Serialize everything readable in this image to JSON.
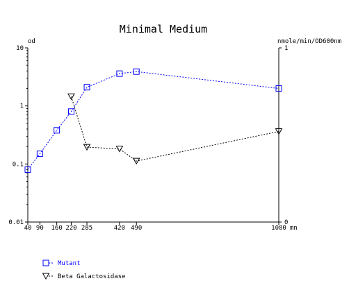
{
  "chart_data": {
    "type": "line",
    "title": "Minimal Medium",
    "y_left": {
      "label": "od",
      "scale": "log",
      "range": [
        0.01,
        10
      ],
      "ticks": [
        {
          "v": 10,
          "label": "10"
        },
        {
          "v": 1,
          "label": "1"
        },
        {
          "v": 0.1,
          "label": "0.1"
        },
        {
          "v": 0.01,
          "label": "0.01"
        }
      ]
    },
    "y_right": {
      "label": "nmole/min/OD600nm",
      "scale": "linear",
      "range": [
        0,
        1
      ],
      "ticks": [
        {
          "v": 1,
          "label": "1"
        },
        {
          "v": 0,
          "label": "0"
        }
      ]
    },
    "x_axis": {
      "range": [
        40,
        1080
      ],
      "ticks": [
        40,
        90,
        160,
        220,
        285,
        420,
        490,
        1080
      ],
      "tick_labels": [
        "40",
        "90",
        "160",
        "220",
        "285",
        "420",
        "490",
        "1080"
      ],
      "unit": "mn"
    },
    "series": [
      {
        "name": "Mutant",
        "axis": "left",
        "color": "#0000ff",
        "marker": "square",
        "x": [
          40,
          90,
          160,
          220,
          285,
          420,
          490,
          1080
        ],
        "y": [
          0.08,
          0.15,
          0.38,
          0.8,
          2.1,
          3.6,
          3.9,
          2.0
        ]
      },
      {
        "name": "Beta Galactosidase",
        "axis": "right",
        "color": "#000000",
        "marker": "triangle-down",
        "x": [
          220,
          285,
          420,
          490,
          1080
        ],
        "y": [
          0.72,
          0.43,
          0.42,
          0.35,
          0.52
        ]
      }
    ]
  }
}
